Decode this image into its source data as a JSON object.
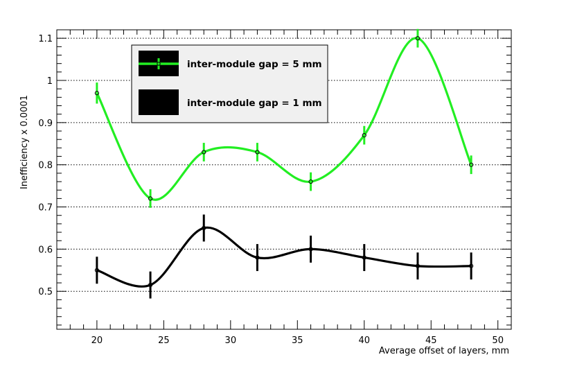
{
  "chart_data": {
    "type": "line",
    "xlabel": "Average offset of layers, mm",
    "ylabel": "Inefficiency x 0.0001",
    "xlim": [
      17,
      51
    ],
    "ylim": [
      0.41,
      1.12
    ],
    "x_ticks": [
      20,
      25,
      30,
      35,
      40,
      45,
      50
    ],
    "x_tick_labels": [
      "20",
      "25",
      "30",
      "35",
      "40",
      "45",
      "50"
    ],
    "y_ticks": [
      0.5,
      0.6,
      0.7,
      0.8,
      0.9,
      1.0,
      1.1
    ],
    "y_tick_labels": [
      "0.5",
      "0.6",
      "0.7",
      "0.8",
      "0.9",
      "1",
      "1.1"
    ],
    "grid": "horizontal dotted",
    "legend_position": "top-left",
    "series": [
      {
        "name": "inter-module gap = 5 mm",
        "color": "#22ee22",
        "x": [
          20,
          24,
          28,
          32,
          36,
          40,
          44,
          48
        ],
        "y": [
          0.97,
          0.72,
          0.83,
          0.83,
          0.76,
          0.87,
          1.1,
          0.8
        ],
        "err": [
          0.025,
          0.022,
          0.022,
          0.022,
          0.022,
          0.022,
          0.022,
          0.022
        ]
      },
      {
        "name": "inter-module gap = 1 mm",
        "color": "#000000",
        "x": [
          20,
          24,
          28,
          32,
          36,
          40,
          44,
          48
        ],
        "y": [
          0.55,
          0.515,
          0.65,
          0.58,
          0.6,
          0.58,
          0.56,
          0.56
        ],
        "err": [
          0.032,
          0.032,
          0.032,
          0.032,
          0.032,
          0.032,
          0.032,
          0.032
        ]
      }
    ]
  }
}
